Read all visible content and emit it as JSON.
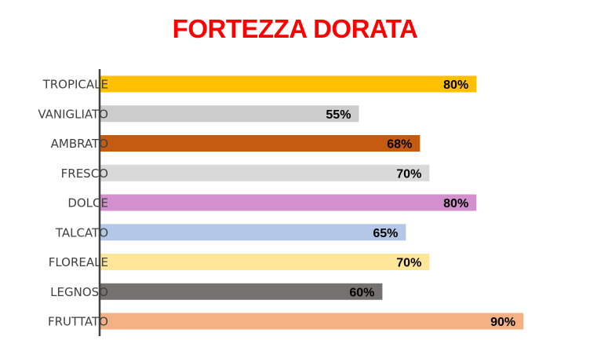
{
  "chart_data": {
    "type": "bar",
    "orientation": "horizontal",
    "title": "FORTEZZA DORATA",
    "categories": [
      "TROPICALE",
      "VANIGLIATO",
      "AMBRATO",
      "FRESCO",
      "DOLCE",
      "TALCATO",
      "FLOREALE",
      "LEGNOSO",
      "FRUTTATO"
    ],
    "values": [
      80,
      55,
      68,
      70,
      80,
      65,
      70,
      60,
      90
    ],
    "data_labels": [
      "80%",
      "55%",
      "68%",
      "70%",
      "80%",
      "65%",
      "70%",
      "60%",
      "90%"
    ],
    "colors": [
      "#FFC000",
      "#CDCCCC",
      "#C55A11",
      "#D9D9D9",
      "#D291CC",
      "#B4C7E7",
      "#FFE699",
      "#767171",
      "#F4B183"
    ],
    "xlim": [
      0,
      100
    ],
    "unit": "%",
    "grid": false,
    "legend": "none",
    "title_color": "#FF0000"
  }
}
